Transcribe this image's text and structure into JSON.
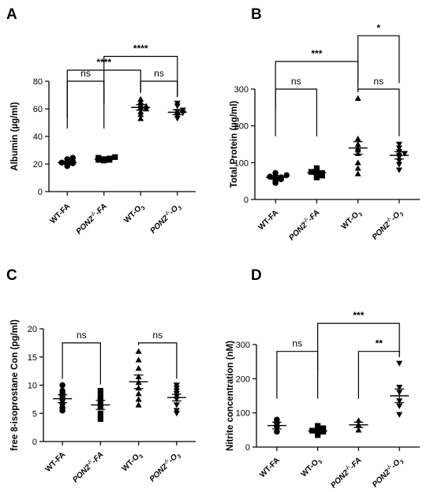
{
  "chart_data": [
    {
      "type": "scatter",
      "panel_label": "A",
      "ylabel": "Albumin  (µg/ml)",
      "ylim": [
        0,
        80
      ],
      "yticks": [
        0,
        20,
        40,
        60,
        80
      ],
      "groups": [
        {
          "label": "WT-FA",
          "label_base": "WT-FA",
          "marker": "circle",
          "mean": 21,
          "sem": 1.0,
          "values": [
            18.5,
            19.5,
            20.5,
            21.0,
            21.5,
            22.0,
            23.5,
            24.5
          ]
        },
        {
          "label": "PON2-/--FA",
          "label_base": "PON2",
          "label_sup": "-/-",
          "label_tail": "-FA",
          "italic": true,
          "marker": "square",
          "mean": 23.5,
          "sem": 0.8,
          "values": [
            22.5,
            23.0,
            23.0,
            23.5,
            24.0,
            24.5,
            25.0
          ]
        },
        {
          "label": "WT-O3",
          "label_base": "WT-O",
          "label_sub": "3",
          "marker": "triangle-up",
          "mean": 61,
          "sem": 2.0,
          "values": [
            53,
            56,
            58,
            60,
            61,
            62,
            63,
            65,
            67
          ]
        },
        {
          "label": "PON2-/--O3",
          "label_base": "PON2",
          "label_sup": "-/-",
          "label_tail": "-O",
          "label_sub": "3",
          "italic": true,
          "marker": "triangle-down",
          "mean": 57.5,
          "sem": 1.8,
          "values": [
            53,
            55,
            56,
            57,
            58,
            59,
            62,
            64
          ]
        }
      ],
      "brackets": [
        {
          "from": 0,
          "to": 1,
          "y": 80,
          "text": "ns"
        },
        {
          "from": 2,
          "to": 3,
          "y": 80,
          "text": "ns"
        },
        {
          "from": 0,
          "to": 2,
          "y": 88,
          "text": "****"
        },
        {
          "from": 1,
          "to": 3,
          "y": 98,
          "text": "****"
        }
      ]
    },
    {
      "type": "scatter",
      "panel_label": "B",
      "ylabel": "Total Protein  (µg/ml)",
      "ylim": [
        0,
        300
      ],
      "yticks": [
        0,
        100,
        200,
        300
      ],
      "groups": [
        {
          "label": "WT-FA",
          "label_base": "WT-FA",
          "marker": "circle",
          "mean": 60,
          "sem": 5,
          "values": [
            45,
            50,
            55,
            58,
            60,
            62,
            66,
            72
          ]
        },
        {
          "label": "PON2-/--FA",
          "label_base": "PON2",
          "label_sup": "-/-",
          "label_tail": "-FA",
          "italic": true,
          "marker": "square",
          "mean": 73,
          "sem": 5,
          "values": [
            60,
            65,
            70,
            72,
            75,
            78,
            85
          ]
        },
        {
          "label": "WT-O3",
          "label_base": "WT-O",
          "label_sub": "3",
          "marker": "triangle-up",
          "mean": 140,
          "sem": 17,
          "values": [
            70,
            85,
            100,
            125,
            135,
            140,
            150,
            165,
            275
          ]
        },
        {
          "label": "PON2-/--O3",
          "label_base": "PON2",
          "label_sup": "-/-",
          "label_tail": "-O",
          "label_sub": "3",
          "italic": true,
          "marker": "triangle-down",
          "mean": 120,
          "sem": 10,
          "values": [
            80,
            95,
            105,
            115,
            120,
            125,
            130,
            140,
            150
          ]
        }
      ],
      "brackets": [
        {
          "from": 0,
          "to": 1,
          "y": 300,
          "text": "ns"
        },
        {
          "from": 2,
          "to": 3,
          "y": 300,
          "text": "ns"
        },
        {
          "from": 0,
          "to": 2,
          "y": 375,
          "text": "***"
        },
        {
          "from": 2,
          "to": 3,
          "y": 445,
          "text": "*"
        }
      ]
    },
    {
      "type": "scatter",
      "panel_label": "C",
      "ylabel": "free 8-isoprostane Con (pg/ml)",
      "ylim": [
        0,
        20
      ],
      "yticks": [
        0,
        5,
        10,
        15,
        20
      ],
      "groups": [
        {
          "label": "WT-FA",
          "label_base": "WT-FA",
          "marker": "circle",
          "mean": 7.6,
          "sem": 0.7,
          "values": [
            5.5,
            6.0,
            6.7,
            7.5,
            8.0,
            8.5,
            9.0,
            10.0
          ]
        },
        {
          "label": "PON2-/--FA",
          "label_base": "PON2",
          "label_sup": "-/-",
          "label_tail": "-FA",
          "italic": true,
          "marker": "square",
          "mean": 6.5,
          "sem": 0.8,
          "values": [
            4.0,
            5.0,
            6.2,
            6.5,
            7.5,
            8.0,
            9.0
          ]
        },
        {
          "label": "WT-O3",
          "label_base": "WT-O",
          "label_sub": "3",
          "marker": "triangle-up",
          "mean": 10.6,
          "sem": 1.2,
          "values": [
            6.5,
            7.5,
            8.5,
            9.5,
            10.5,
            11.5,
            13.0,
            14.5,
            16.0
          ]
        },
        {
          "label": "PON2-/--O3",
          "label_base": "PON2",
          "label_sup": "-/-",
          "label_tail": "-O",
          "label_sub": "3",
          "italic": true,
          "marker": "triangle-down",
          "mean": 7.8,
          "sem": 0.6,
          "values": [
            5.0,
            5.5,
            6.5,
            7.5,
            8.0,
            8.5,
            9.0,
            9.5,
            10.0
          ]
        }
      ],
      "brackets": [
        {
          "from": 0,
          "to": 1,
          "y": 17.5,
          "text": "ns"
        },
        {
          "from": 2,
          "to": 3,
          "y": 17.5,
          "text": "ns"
        }
      ]
    },
    {
      "type": "scatter",
      "panel_label": "D",
      "ylabel": "Nitrite concentration (nM)",
      "ylim": [
        0,
        300
      ],
      "yticks": [
        0,
        100,
        200,
        300
      ],
      "groups": [
        {
          "label": "WT-FA",
          "label_base": "WT-FA",
          "marker": "circle",
          "mean": 63,
          "sem": 10,
          "values": [
            45,
            60,
            70,
            80
          ]
        },
        {
          "label": "WT-O3",
          "label_base": "WT-O",
          "label_sub": "3",
          "marker": "square",
          "mean": 47,
          "sem": 5,
          "values": [
            35,
            40,
            45,
            48,
            50,
            55,
            62
          ]
        },
        {
          "label": "PON2-/--FA",
          "label_base": "PON2",
          "label_sup": "-/-",
          "label_tail": "-FA",
          "italic": true,
          "marker": "triangle-up",
          "mean": 65,
          "sem": 8,
          "values": [
            50,
            65,
            78
          ]
        },
        {
          "label": "PON2-/--O3",
          "label_base": "PON2",
          "label_sup": "-/-",
          "label_tail": "-O",
          "label_sub": "3",
          "italic": true,
          "marker": "triangle-down",
          "mean": 150,
          "sem": 20,
          "values": [
            95,
            120,
            135,
            160,
            175,
            245
          ]
        }
      ],
      "brackets": [
        {
          "from": 0,
          "to": 1,
          "y": 280,
          "text": "ns"
        },
        {
          "from": 2,
          "to": 3,
          "y": 280,
          "text": "**"
        },
        {
          "from": 1,
          "to": 3,
          "y": 362,
          "text": "***"
        }
      ]
    }
  ]
}
